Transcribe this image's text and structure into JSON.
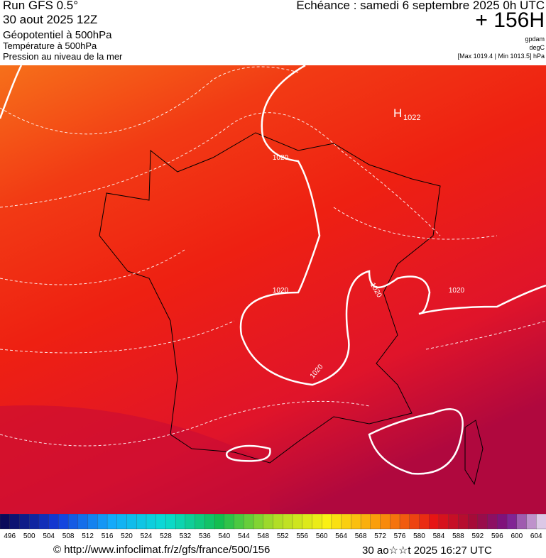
{
  "header": {
    "run": "Run GFS 0.5°",
    "date": "30 aout 2025 12Z",
    "title": "Géopotentiel à 500hPa",
    "subtitle1": "Température à 500hPa",
    "subtitle2": "Pression au niveau de la mer",
    "forecast": "Echéance : samedi 6 septembre 2025 0h UTC",
    "lead": "+ 156H",
    "units": [
      "gpdam",
      "degC"
    ],
    "range": "[Max 1019.4 | Min 1013.5] hPa"
  },
  "map": {
    "isobar_labels": [
      "1020",
      "1020",
      "1020",
      "1020",
      "1020"
    ],
    "high": {
      "letter": "H",
      "value": "1022"
    }
  },
  "colorbar": {
    "labels": [
      496,
      500,
      504,
      508,
      512,
      516,
      520,
      524,
      528,
      532,
      536,
      540,
      544,
      548,
      552,
      556,
      560,
      564,
      568,
      572,
      576,
      580,
      584,
      588,
      592,
      596,
      600,
      604
    ]
  },
  "footer": {
    "source": "© http://www.infoclimat.fr/z/gfs/france/500/156",
    "timestamp": "30 ao☆☆t 2025 16:27 UTC"
  }
}
